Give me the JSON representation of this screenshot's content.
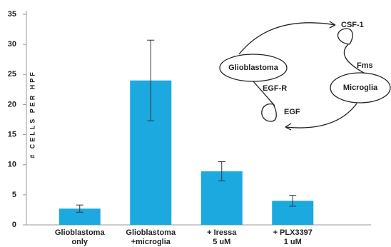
{
  "chart_data": {
    "type": "bar",
    "y_label": "# CELLS PER HPF",
    "categories": [
      [
        "Glioblastoma",
        "only"
      ],
      [
        "Glioblastoma",
        "+microglia"
      ],
      [
        "+ Iressa",
        "5 uM"
      ],
      [
        "+ PLX3397",
        "1 uM"
      ]
    ],
    "values": [
      2.7,
      24.0,
      8.9,
      4.0
    ],
    "errors": [
      0.6,
      6.7,
      1.6,
      0.9
    ],
    "color": "#1ba9e0",
    "ylim": [
      0,
      35
    ],
    "yticks": [
      0,
      5,
      10,
      15,
      20,
      25,
      30,
      35
    ],
    "annotations": [
      "Glioblastoma",
      "Microglia",
      "CSF-1",
      "Fms",
      "EGF-R",
      "EGF"
    ]
  }
}
